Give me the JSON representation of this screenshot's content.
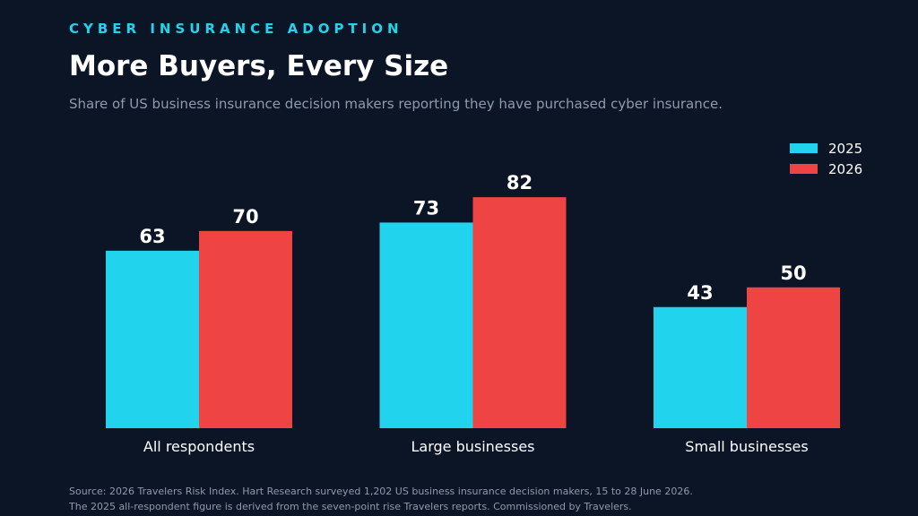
{
  "header": {
    "eyebrow": "CYBER INSURANCE ADOPTION",
    "title": "More Buyers, Every Size",
    "subtitle": "Share of US business insurance decision makers reporting they have purchased cyber insurance."
  },
  "footer": {
    "line1": "Source: 2026 Travelers Risk Index. Hart Research surveyed 1,202 US business insurance decision makers, 15 to 28 June 2026.",
    "line2": "The 2025 all-respondent figure is derived from the seven-point rise Travelers reports. Commissioned by Travelers."
  },
  "colors": {
    "background": "#0b1526",
    "series_2025": "#22d3ee",
    "series_2026": "#ef4444"
  },
  "chart_data": {
    "type": "bar",
    "title": "More Buyers, Every Size",
    "subtitle": "Share of US business insurance decision makers reporting they have purchased cyber insurance.",
    "categories": [
      "All respondents",
      "Large businesses",
      "Small businesses"
    ],
    "series": [
      {
        "name": "2025",
        "color": "#22d3ee",
        "values": [
          63,
          73,
          43
        ]
      },
      {
        "name": "2026",
        "color": "#ef4444",
        "values": [
          70,
          82,
          50
        ]
      }
    ],
    "ylim": [
      0,
      100
    ],
    "grid": false,
    "legend": "top-right",
    "data_labels": true
  }
}
